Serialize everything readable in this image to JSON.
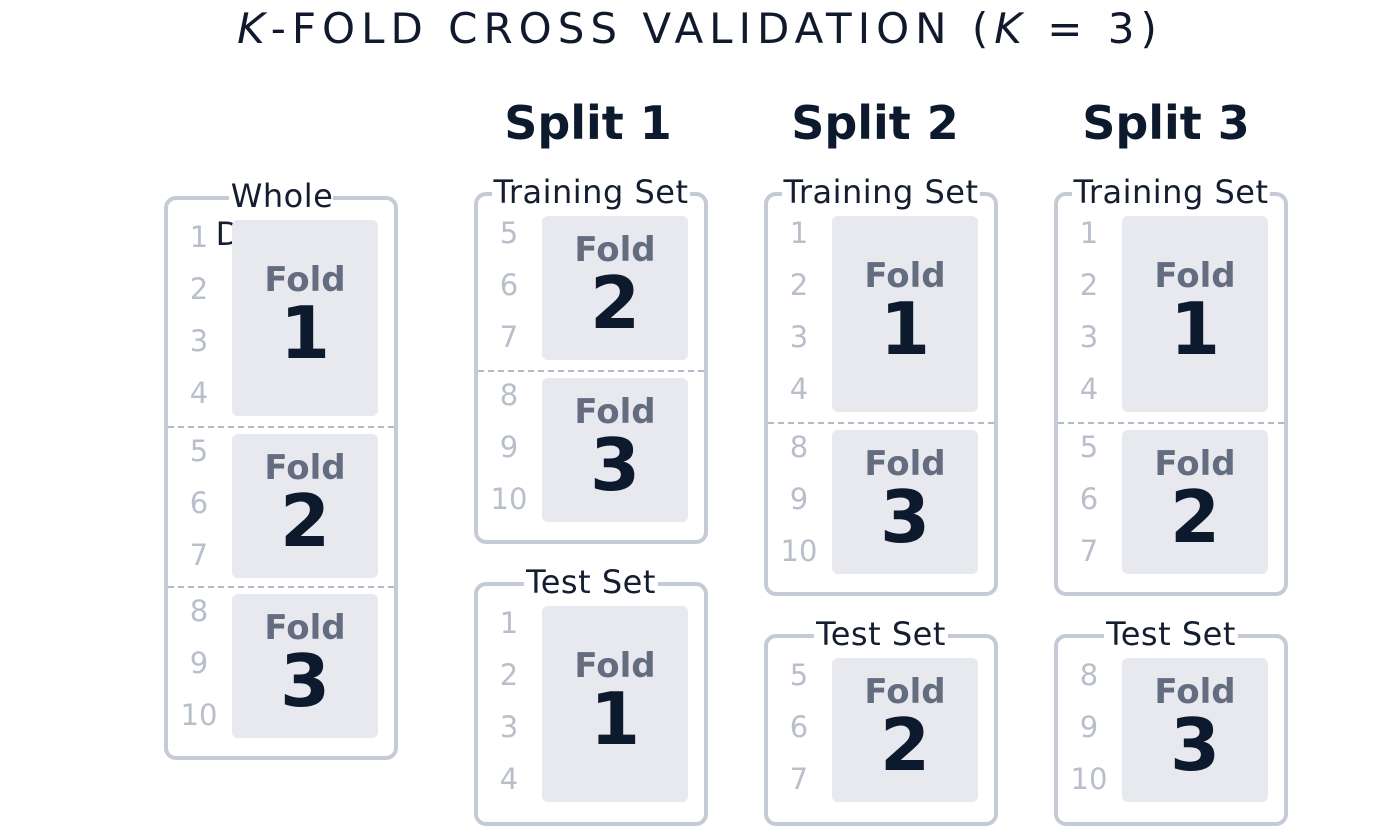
{
  "title": {
    "k": "K",
    "main": "-FOLD CROSS VALIDATION  (",
    "k2": "K",
    "tail": " = 3)"
  },
  "whole": {
    "label": "Whole Dataset",
    "folds": [
      {
        "word": "Fold",
        "num": "1",
        "rows": [
          "1",
          "2",
          "3",
          "4"
        ]
      },
      {
        "word": "Fold",
        "num": "2",
        "rows": [
          "5",
          "6",
          "7"
        ]
      },
      {
        "word": "Fold",
        "num": "3",
        "rows": [
          "8",
          "9",
          "10"
        ]
      }
    ]
  },
  "splits": [
    {
      "title": "Split 1",
      "train": {
        "label": "Training Set",
        "folds": [
          {
            "word": "Fold",
            "num": "2",
            "rows": [
              "5",
              "6",
              "7"
            ]
          },
          {
            "word": "Fold",
            "num": "3",
            "rows": [
              "8",
              "9",
              "10"
            ]
          }
        ]
      },
      "test": {
        "label": "Test Set",
        "folds": [
          {
            "word": "Fold",
            "num": "1",
            "rows": [
              "1",
              "2",
              "3",
              "4"
            ]
          }
        ]
      }
    },
    {
      "title": "Split 2",
      "train": {
        "label": "Training Set",
        "folds": [
          {
            "word": "Fold",
            "num": "1",
            "rows": [
              "1",
              "2",
              "3",
              "4"
            ]
          },
          {
            "word": "Fold",
            "num": "3",
            "rows": [
              "8",
              "9",
              "10"
            ]
          }
        ]
      },
      "test": {
        "label": "Test Set",
        "folds": [
          {
            "word": "Fold",
            "num": "2",
            "rows": [
              "5",
              "6",
              "7"
            ]
          }
        ]
      }
    },
    {
      "title": "Split 3",
      "train": {
        "label": "Training Set",
        "folds": [
          {
            "word": "Fold",
            "num": "1",
            "rows": [
              "1",
              "2",
              "3",
              "4"
            ]
          },
          {
            "word": "Fold",
            "num": "2",
            "rows": [
              "5",
              "6",
              "7"
            ]
          }
        ]
      },
      "test": {
        "label": "Test Set",
        "folds": [
          {
            "word": "Fold",
            "num": "3",
            "rows": [
              "8",
              "9",
              "10"
            ]
          }
        ]
      }
    }
  ]
}
